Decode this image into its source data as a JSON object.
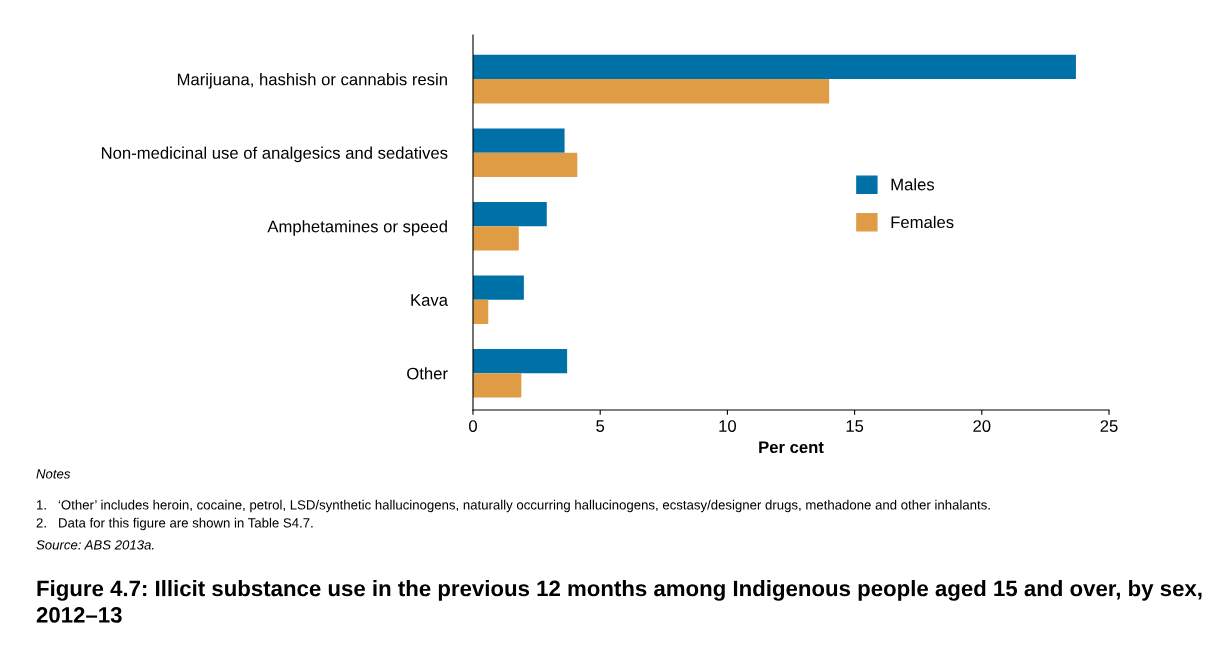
{
  "chart_data": {
    "type": "bar",
    "orientation": "horizontal",
    "title": "Figure 4.7: Illicit substance use in the previous 12 months among Indigenous people aged 15 and over, by sex, 2012–13",
    "xlabel": "Per cent",
    "categories": [
      "Marijuana, hashish or cannabis resin",
      "Non-medicinal use of analgesics and sedatives",
      "Amphetamines or speed",
      "Kava",
      "Other"
    ],
    "series": [
      {
        "name": "Males",
        "color": "#0071a6",
        "values": [
          23.7,
          3.6,
          2.9,
          2.0,
          3.7
        ]
      },
      {
        "name": "Females",
        "color": "#e09c45",
        "values": [
          14.0,
          4.1,
          1.8,
          0.6,
          1.9
        ]
      }
    ],
    "xlim": [
      0,
      25
    ],
    "xticks": [
      0,
      5,
      10,
      15,
      20,
      25
    ],
    "legend": "right",
    "grid": false,
    "annotations": [
      "Notes",
      "1.   ‘Other’ includes heroin, cocaine, petrol, LSD/synthetic hallucinogens, naturally occurring hallucinogens, ecstasy/designer drugs, methadone and other inhalants.",
      "2.   Data for this figure are shown in Table S4.7.",
      "Source: ABS 2013a."
    ]
  }
}
